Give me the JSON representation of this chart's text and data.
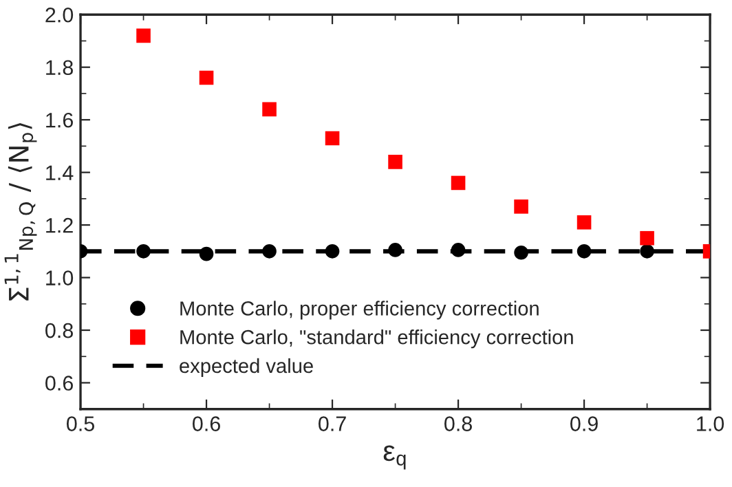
{
  "chart_data": {
    "type": "scatter",
    "xlabel": "ε$_{q}$",
    "ylabel": "Σ$^{1,1}$$_{Np,Q}$ / ⟨N$_{p}$⟩",
    "x": [
      0.5,
      0.55,
      0.6,
      0.65,
      0.7,
      0.75,
      0.8,
      0.85,
      0.9,
      0.95,
      1.0
    ],
    "series": [
      {
        "name": "Monte Carlo, proper efficiency correction",
        "color": "#000000",
        "marker": "circle",
        "values": [
          1.1,
          1.1,
          1.09,
          1.1,
          1.1,
          1.105,
          1.105,
          1.095,
          1.1,
          1.1,
          null
        ]
      },
      {
        "name": "Monte Carlo, \"standard\" efficiency correction",
        "color": "#ff0000",
        "marker": "square",
        "values": [
          null,
          1.92,
          1.76,
          1.64,
          1.53,
          1.44,
          1.36,
          1.27,
          1.21,
          1.15,
          1.1
        ]
      }
    ],
    "ref_lines": [
      {
        "axis": "y",
        "value": 1.1,
        "label": "expected value",
        "color": "#000000",
        "line_style": "dashed"
      }
    ],
    "xlim": [
      0.5,
      1.0
    ],
    "xticks": [
      0.5,
      0.6,
      0.7,
      0.8,
      0.9,
      {
        "value": 1.0,
        "label": "1.0"
      }
    ],
    "ylim": [
      0.5,
      2.0
    ],
    "yticks": [
      0.6,
      0.8,
      {
        "value": 1.0,
        "label": "1.0"
      },
      1.2,
      1.4,
      1.6,
      1.8,
      {
        "value": 2.0,
        "label": "2.0"
      }
    ],
    "grid": false,
    "legend": "bottom left"
  }
}
